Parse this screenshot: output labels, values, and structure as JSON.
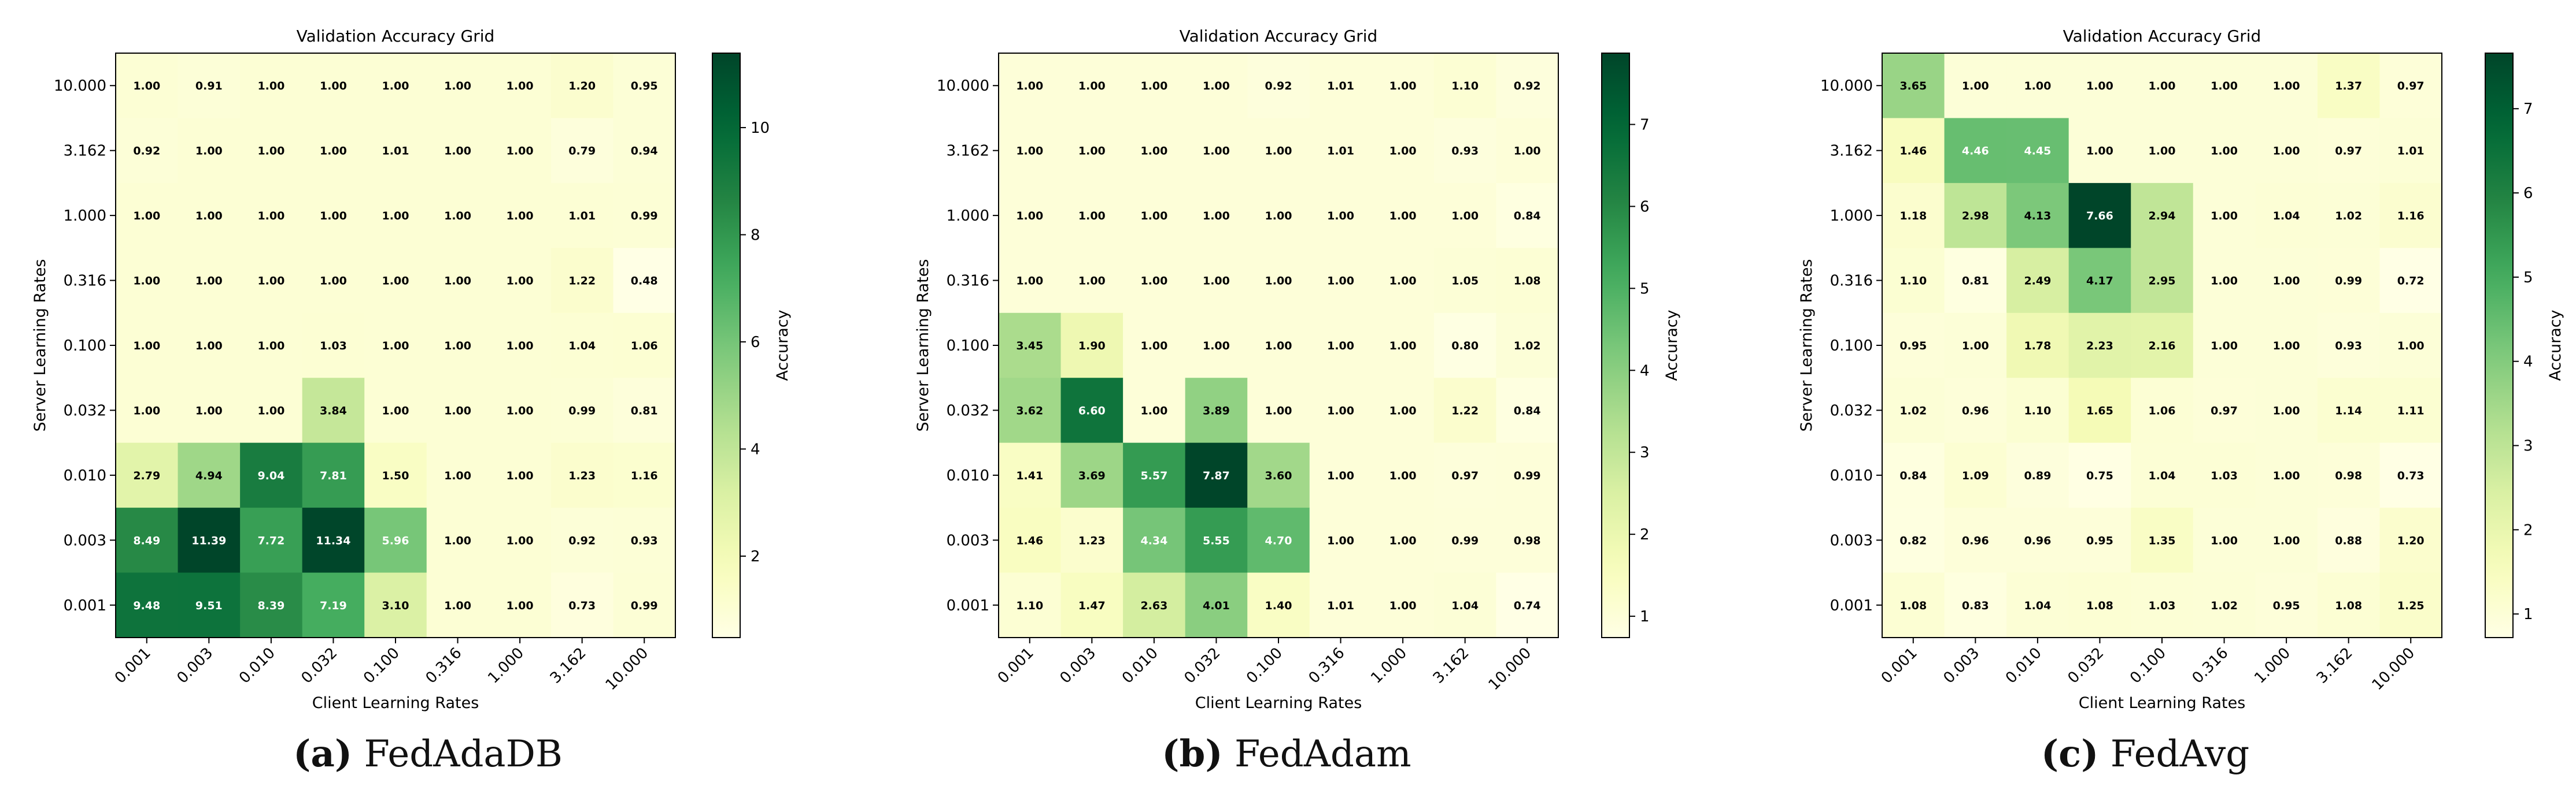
{
  "chart_data": [
    {
      "type": "heatmap",
      "title": "Validation Accuracy Grid",
      "xlabel": "Client Learning Rates",
      "ylabel": "Server Learning Rates",
      "colorbar_label": "Accuracy",
      "x_categories": [
        "0.001",
        "0.003",
        "0.010",
        "0.032",
        "0.100",
        "0.316",
        "1.000",
        "3.162",
        "10.000"
      ],
      "y_categories": [
        "10.000",
        "3.162",
        "1.000",
        "0.316",
        "0.100",
        "0.032",
        "0.010",
        "0.003",
        "0.001"
      ],
      "values": [
        [
          1.0,
          0.91,
          1.0,
          1.0,
          1.0,
          1.0,
          1.0,
          1.2,
          0.95
        ],
        [
          0.92,
          1.0,
          1.0,
          1.0,
          1.01,
          1.0,
          1.0,
          0.79,
          0.94
        ],
        [
          1.0,
          1.0,
          1.0,
          1.0,
          1.0,
          1.0,
          1.0,
          1.01,
          0.99
        ],
        [
          1.0,
          1.0,
          1.0,
          1.0,
          1.0,
          1.0,
          1.0,
          1.22,
          0.48
        ],
        [
          1.0,
          1.0,
          1.0,
          1.03,
          1.0,
          1.0,
          1.0,
          1.04,
          1.06
        ],
        [
          1.0,
          1.0,
          1.0,
          3.84,
          1.0,
          1.0,
          1.0,
          0.99,
          0.81
        ],
        [
          2.79,
          4.94,
          9.04,
          7.81,
          1.5,
          1.0,
          1.0,
          1.23,
          1.16
        ],
        [
          8.49,
          11.39,
          7.72,
          11.34,
          5.96,
          1.0,
          1.0,
          0.92,
          0.93
        ],
        [
          9.48,
          9.51,
          8.39,
          7.19,
          3.1,
          1.0,
          1.0,
          0.73,
          0.99
        ]
      ],
      "vmin": 0.48,
      "vmax": 11.39,
      "colorbar_ticks": [
        2,
        4,
        6,
        8,
        10
      ],
      "caption_letter": "(a)",
      "caption_name": "FedAdaDB"
    },
    {
      "type": "heatmap",
      "title": "Validation Accuracy Grid",
      "xlabel": "Client Learning Rates",
      "ylabel": "Server Learning Rates",
      "colorbar_label": "Accuracy",
      "x_categories": [
        "0.001",
        "0.003",
        "0.010",
        "0.032",
        "0.100",
        "0.316",
        "1.000",
        "3.162",
        "10.000"
      ],
      "y_categories": [
        "10.000",
        "3.162",
        "1.000",
        "0.316",
        "0.100",
        "0.032",
        "0.010",
        "0.003",
        "0.001"
      ],
      "values": [
        [
          1.0,
          1.0,
          1.0,
          1.0,
          0.92,
          1.01,
          1.0,
          1.1,
          0.92
        ],
        [
          1.0,
          1.0,
          1.0,
          1.0,
          1.0,
          1.01,
          1.0,
          0.93,
          1.0
        ],
        [
          1.0,
          1.0,
          1.0,
          1.0,
          1.0,
          1.0,
          1.0,
          1.0,
          0.84
        ],
        [
          1.0,
          1.0,
          1.0,
          1.0,
          1.0,
          1.0,
          1.0,
          1.05,
          1.08
        ],
        [
          3.45,
          1.9,
          1.0,
          1.0,
          1.0,
          1.0,
          1.0,
          0.8,
          1.02
        ],
        [
          3.62,
          6.6,
          1.0,
          3.89,
          1.0,
          1.0,
          1.0,
          1.22,
          0.84
        ],
        [
          1.41,
          3.69,
          5.57,
          7.87,
          3.6,
          1.0,
          1.0,
          0.97,
          0.99
        ],
        [
          1.46,
          1.23,
          4.34,
          5.55,
          4.7,
          1.0,
          1.0,
          0.99,
          0.98
        ],
        [
          1.1,
          1.47,
          2.63,
          4.01,
          1.4,
          1.01,
          1.0,
          1.04,
          0.74
        ]
      ],
      "vmin": 0.74,
      "vmax": 7.87,
      "colorbar_ticks": [
        1,
        2,
        3,
        4,
        5,
        6,
        7
      ],
      "caption_letter": "(b)",
      "caption_name": "FedAdam"
    },
    {
      "type": "heatmap",
      "title": "Validation Accuracy Grid",
      "xlabel": "Client Learning Rates",
      "ylabel": "Server Learning Rates",
      "colorbar_label": "Accuracy",
      "x_categories": [
        "0.001",
        "0.003",
        "0.010",
        "0.032",
        "0.100",
        "0.316",
        "1.000",
        "3.162",
        "10.000"
      ],
      "y_categories": [
        "10.000",
        "3.162",
        "1.000",
        "0.316",
        "0.100",
        "0.032",
        "0.010",
        "0.003",
        "0.001"
      ],
      "values": [
        [
          3.65,
          1.0,
          1.0,
          1.0,
          1.0,
          1.0,
          1.0,
          1.37,
          0.97
        ],
        [
          1.46,
          4.46,
          4.45,
          1.0,
          1.0,
          1.0,
          1.0,
          0.97,
          1.01
        ],
        [
          1.18,
          2.98,
          4.13,
          7.66,
          2.94,
          1.0,
          1.04,
          1.02,
          1.16
        ],
        [
          1.1,
          0.81,
          2.49,
          4.17,
          2.95,
          1.0,
          1.0,
          0.99,
          0.72
        ],
        [
          0.95,
          1.0,
          1.78,
          2.23,
          2.16,
          1.0,
          1.0,
          0.93,
          1.0
        ],
        [
          1.02,
          0.96,
          1.1,
          1.65,
          1.06,
          0.97,
          1.0,
          1.14,
          1.11
        ],
        [
          0.84,
          1.09,
          0.89,
          0.75,
          1.04,
          1.03,
          1.0,
          0.98,
          0.73
        ],
        [
          0.82,
          0.96,
          0.96,
          0.95,
          1.35,
          1.0,
          1.0,
          0.88,
          1.2
        ],
        [
          1.08,
          0.83,
          1.04,
          1.08,
          1.03,
          1.02,
          0.95,
          1.08,
          1.25
        ]
      ],
      "vmin": 0.72,
      "vmax": 7.66,
      "colorbar_ticks": [
        1,
        2,
        3,
        4,
        5,
        6,
        7
      ],
      "caption_letter": "(c)",
      "caption_name": "FedAvg"
    }
  ]
}
